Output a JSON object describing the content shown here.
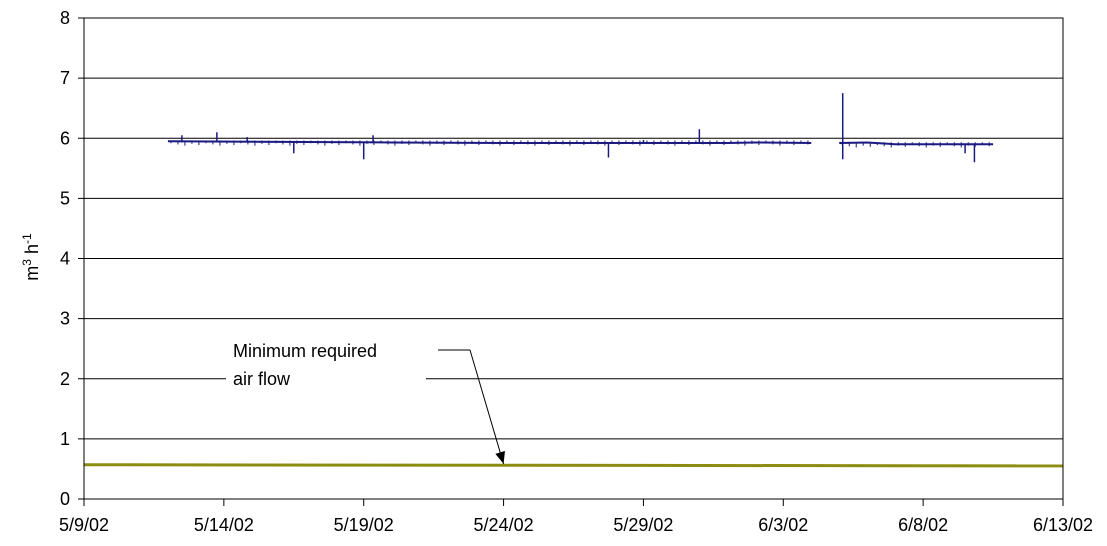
{
  "chart_data": {
    "type": "line",
    "ylabel_base": "m",
    "ylabel_sup1": "3",
    "ylabel_mid": " h",
    "ylabel_sup2": "-1",
    "ylim": [
      0,
      8
    ],
    "yticks": [
      "0",
      "1",
      "2",
      "3",
      "4",
      "5",
      "6",
      "7",
      "8"
    ],
    "xlim": [
      "2002-05-09",
      "2002-06-13"
    ],
    "xticks": [
      {
        "date": "2002-05-09",
        "label": "5/9/02"
      },
      {
        "date": "2002-05-14",
        "label": "5/14/02"
      },
      {
        "date": "2002-05-19",
        "label": "5/19/02"
      },
      {
        "date": "2002-05-24",
        "label": "5/24/02"
      },
      {
        "date": "2002-05-29",
        "label": "5/29/02"
      },
      {
        "date": "2002-06-03",
        "label": "6/3/02"
      },
      {
        "date": "2002-06-08",
        "label": "6/8/02"
      },
      {
        "date": "2002-06-13",
        "label": "6/13/02"
      }
    ],
    "grid": "horizontal",
    "annotation": {
      "line1": "Minimum required",
      "line2": "air flow",
      "points_to_date": "2002-05-24",
      "points_to_value": 0.55
    },
    "series": [
      {
        "color": "#1a1a80",
        "segments": [
          {
            "start": "2002-05-12",
            "end": "2002-06-04",
            "level": 5.93,
            "level_points": [
              [
                "2002-05-12",
                5.95
              ],
              [
                "2002-05-16",
                5.94
              ],
              [
                "2002-05-20",
                5.93
              ],
              [
                "2002-05-24",
                5.92
              ],
              [
                "2002-05-28",
                5.92
              ],
              [
                "2002-06-01",
                5.92
              ],
              [
                "2002-06-02",
                5.93
              ],
              [
                "2002-06-04",
                5.92
              ]
            ],
            "spikes": [
              [
                "2002-05-12T12:00",
                6.05
              ],
              [
                "2002-05-13T18:00",
                6.1
              ],
              [
                "2002-05-14T20:00",
                6.02
              ],
              [
                "2002-05-16T12:00",
                5.75
              ],
              [
                "2002-05-19T00:00",
                5.65
              ],
              [
                "2002-05-19T08:00",
                6.05
              ],
              [
                "2002-05-27T18:00",
                5.68
              ],
              [
                "2002-05-29T00:00",
                5.97
              ],
              [
                "2002-05-31T00:00",
                6.15
              ]
            ]
          },
          {
            "start": "2002-06-05",
            "end": "2002-06-10T12:00",
            "level": 5.9,
            "level_points": [
              [
                "2002-06-05",
                5.92
              ],
              [
                "2002-06-06",
                5.93
              ],
              [
                "2002-06-07",
                5.9
              ],
              [
                "2002-06-10T12:00",
                5.9
              ]
            ],
            "spikes": [
              [
                "2002-06-05T03:00",
                6.75
              ],
              [
                "2002-06-05T03:00",
                5.65
              ],
              [
                "2002-06-09T12:00",
                5.75
              ],
              [
                "2002-06-09T20:00",
                5.6
              ]
            ]
          }
        ]
      },
      {
        "color": "#8c8c10",
        "points": [
          [
            "2002-05-09",
            0.57
          ],
          [
            "2002-06-13",
            0.55
          ]
        ]
      }
    ]
  }
}
